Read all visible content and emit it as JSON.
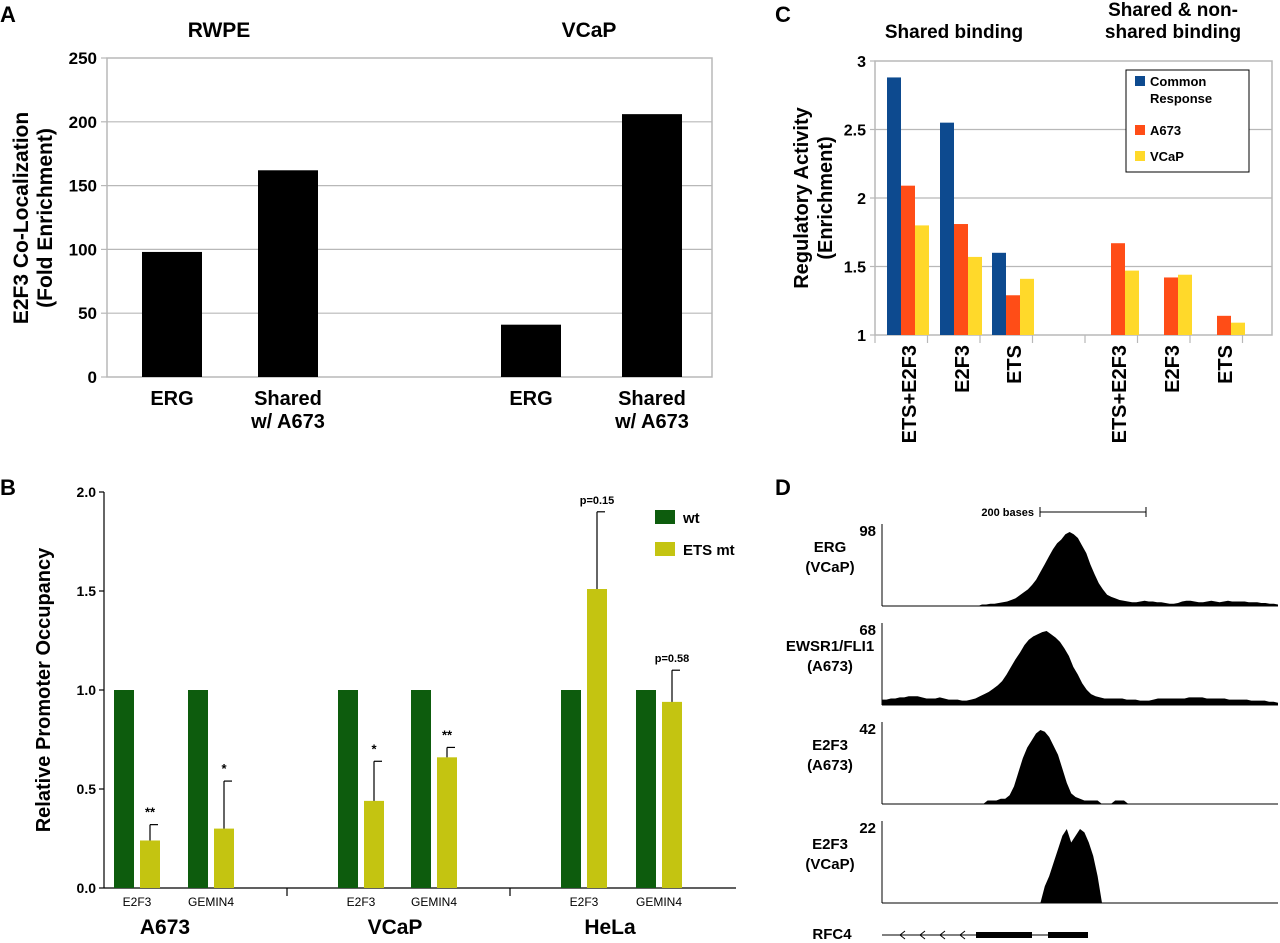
{
  "chart_data": [
    {
      "panel": "A",
      "type": "bar",
      "ylabel": "E2F3 Co-Localization (Fold Enrichment)",
      "ylabel_lines": [
        "E2F3 Co-Localization",
        "(Fold Enrichment)"
      ],
      "ylim": [
        0,
        250
      ],
      "yticks": [
        0,
        50,
        100,
        150,
        200,
        250
      ],
      "grid": true,
      "groups": [
        {
          "name": "RWPE",
          "categories": [
            [
              "ERG"
            ],
            [
              "Shared",
              "w/ A673"
            ]
          ],
          "values": [
            98,
            162
          ]
        },
        {
          "name": "VCaP",
          "categories": [
            [
              "ERG"
            ],
            [
              "Shared",
              "w/ A673"
            ]
          ],
          "values": [
            41,
            206
          ]
        }
      ],
      "color": "#000000"
    },
    {
      "panel": "B",
      "type": "bar",
      "ylabel": "Relative Promoter Occupancy",
      "ylim": [
        0,
        2.0
      ],
      "yticks": [
        "0.0",
        "0.5",
        "1.0",
        "1.5",
        "2.0"
      ],
      "series_names": [
        "wt",
        "ETS mt"
      ],
      "colors": [
        "#0d5c0d",
        "#c4c411"
      ],
      "groups": [
        {
          "name": "A673",
          "bars": [
            {
              "gene": "E2F3",
              "wt": 1.0,
              "mt": 0.24,
              "err": 0.08,
              "annot": "**"
            },
            {
              "gene": "GEMIN4",
              "wt": 1.0,
              "mt": 0.3,
              "err": 0.24,
              "annot": "*"
            }
          ]
        },
        {
          "name": "VCaP",
          "bars": [
            {
              "gene": "E2F3",
              "wt": 1.0,
              "mt": 0.44,
              "err": 0.2,
              "annot": "*"
            },
            {
              "gene": "GEMIN4",
              "wt": 1.0,
              "mt": 0.66,
              "err": 0.05,
              "annot": "**"
            }
          ]
        },
        {
          "name": "HeLa",
          "bars": [
            {
              "gene": "E2F3",
              "wt": 1.0,
              "mt": 1.51,
              "err": 0.39,
              "annot": "p=0.15"
            },
            {
              "gene": "GEMIN4",
              "wt": 1.0,
              "mt": 0.94,
              "err": 0.16,
              "annot": "p=0.58"
            }
          ]
        }
      ]
    },
    {
      "panel": "C",
      "type": "bar",
      "ylabel": "Regulatory Activity (Enrichment)",
      "ylabel_lines": [
        "Regulatory Activity",
        "(Enrichment)"
      ],
      "ylim": [
        1,
        3
      ],
      "yticks": [
        "1",
        "1.5",
        "2",
        "2.5",
        "3"
      ],
      "grid": true,
      "group_titles": [
        [
          "Shared binding"
        ],
        [
          "Shared & non-",
          "shared binding"
        ]
      ],
      "legend": [
        [
          "Common",
          "Response"
        ],
        [
          "A673"
        ],
        [
          "VCaP"
        ]
      ],
      "series_colors": [
        "#0d4a8f",
        "#ff4d17",
        "#ffd92a"
      ],
      "categories": [
        "ETS+E2F3",
        "E2F3",
        "ETS",
        "ETS+E2F3",
        "E2F3",
        "ETS"
      ],
      "values": [
        [
          2.88,
          2.09,
          1.8
        ],
        [
          2.55,
          1.81,
          1.57
        ],
        [
          1.6,
          1.29,
          1.41
        ],
        [
          null,
          1.67,
          1.47
        ],
        [
          null,
          1.42,
          1.44
        ],
        [
          null,
          1.14,
          1.09
        ]
      ]
    },
    {
      "panel": "D",
      "type": "area",
      "scale_label": "200 bases",
      "gene": "RFC4",
      "tracks": [
        {
          "label": [
            "ERG",
            "(VCaP)"
          ],
          "max": 98,
          "profile": [
            0,
            0,
            0,
            0,
            0,
            0,
            0,
            0,
            0,
            0,
            0,
            0,
            0,
            0,
            0,
            0,
            0,
            0,
            0,
            0,
            0,
            0,
            0,
            0,
            2,
            2,
            3,
            3,
            4,
            5,
            6,
            8,
            10,
            14,
            18,
            22,
            28,
            35,
            45,
            55,
            65,
            75,
            83,
            88,
            95,
            98,
            95,
            90,
            80,
            70,
            55,
            42,
            30,
            22,
            15,
            12,
            10,
            8,
            7,
            6,
            5,
            5,
            6,
            7,
            6,
            6,
            5,
            5,
            4,
            3,
            3,
            4,
            6,
            7,
            7,
            6,
            5,
            5,
            6,
            7,
            6,
            5,
            6,
            7,
            6,
            6,
            6,
            6,
            5,
            5,
            5,
            4,
            4,
            3,
            3,
            2
          ]
        },
        {
          "label": [
            "EWSR1/FLI1",
            "(A673)"
          ],
          "max": 68,
          "profile": [
            5,
            5,
            6,
            6,
            7,
            7,
            8,
            8,
            8,
            7,
            6,
            6,
            6,
            7,
            6,
            5,
            5,
            5,
            4,
            4,
            5,
            6,
            8,
            10,
            12,
            15,
            18,
            22,
            28,
            35,
            42,
            48,
            55,
            60,
            63,
            65,
            67,
            68,
            65,
            62,
            58,
            52,
            45,
            35,
            28,
            20,
            14,
            10,
            8,
            7,
            6,
            6,
            6,
            6,
            6,
            5,
            5,
            5,
            4,
            4,
            4,
            5,
            6,
            6,
            6,
            6,
            6,
            6,
            6,
            7,
            7,
            7,
            7,
            6,
            6,
            6,
            6,
            6,
            5,
            5,
            5,
            5,
            5,
            4,
            4,
            4,
            4,
            3,
            3,
            2
          ]
        },
        {
          "label": [
            "E2F3",
            "(A673)"
          ],
          "max": 42,
          "profile": [
            0,
            0,
            0,
            0,
            0,
            0,
            0,
            0,
            0,
            0,
            0,
            0,
            0,
            0,
            0,
            0,
            0,
            0,
            0,
            0,
            0,
            0,
            0,
            0,
            2,
            2,
            2,
            3,
            3,
            5,
            10,
            18,
            26,
            32,
            36,
            40,
            42,
            41,
            38,
            33,
            28,
            20,
            12,
            6,
            4,
            3,
            2,
            2,
            2,
            2,
            0,
            0,
            0,
            2,
            2,
            2,
            0,
            0,
            0,
            0,
            0,
            0,
            0,
            0,
            0,
            0,
            0,
            0,
            0,
            0,
            0,
            0,
            0,
            0,
            0,
            0,
            0,
            0,
            0,
            0,
            0,
            0,
            0,
            0,
            0,
            0,
            0,
            0,
            0,
            0,
            0
          ]
        },
        {
          "label": [
            "E2F3",
            "(VCaP)"
          ],
          "max": 22,
          "profile": [
            0,
            0,
            0,
            0,
            0,
            0,
            0,
            0,
            0,
            0,
            0,
            0,
            0,
            0,
            0,
            0,
            0,
            0,
            0,
            0,
            0,
            0,
            0,
            0,
            0,
            0,
            0,
            0,
            0,
            0,
            0,
            0,
            0,
            0,
            0,
            0,
            0,
            5,
            8,
            12,
            16,
            20,
            22,
            18,
            20,
            22,
            21,
            18,
            14,
            8,
            0,
            0,
            0,
            0,
            0,
            0,
            0,
            0,
            0,
            0,
            0,
            0,
            0,
            0,
            0,
            0,
            0,
            0,
            0,
            0,
            0,
            0,
            0,
            0,
            0,
            0,
            0,
            0,
            0,
            0,
            0,
            0,
            0,
            0,
            0,
            0,
            0,
            0,
            0,
            0,
            0
          ]
        }
      ]
    }
  ],
  "panels": {
    "A": "A",
    "B": "B",
    "C": "C",
    "D": "D"
  }
}
